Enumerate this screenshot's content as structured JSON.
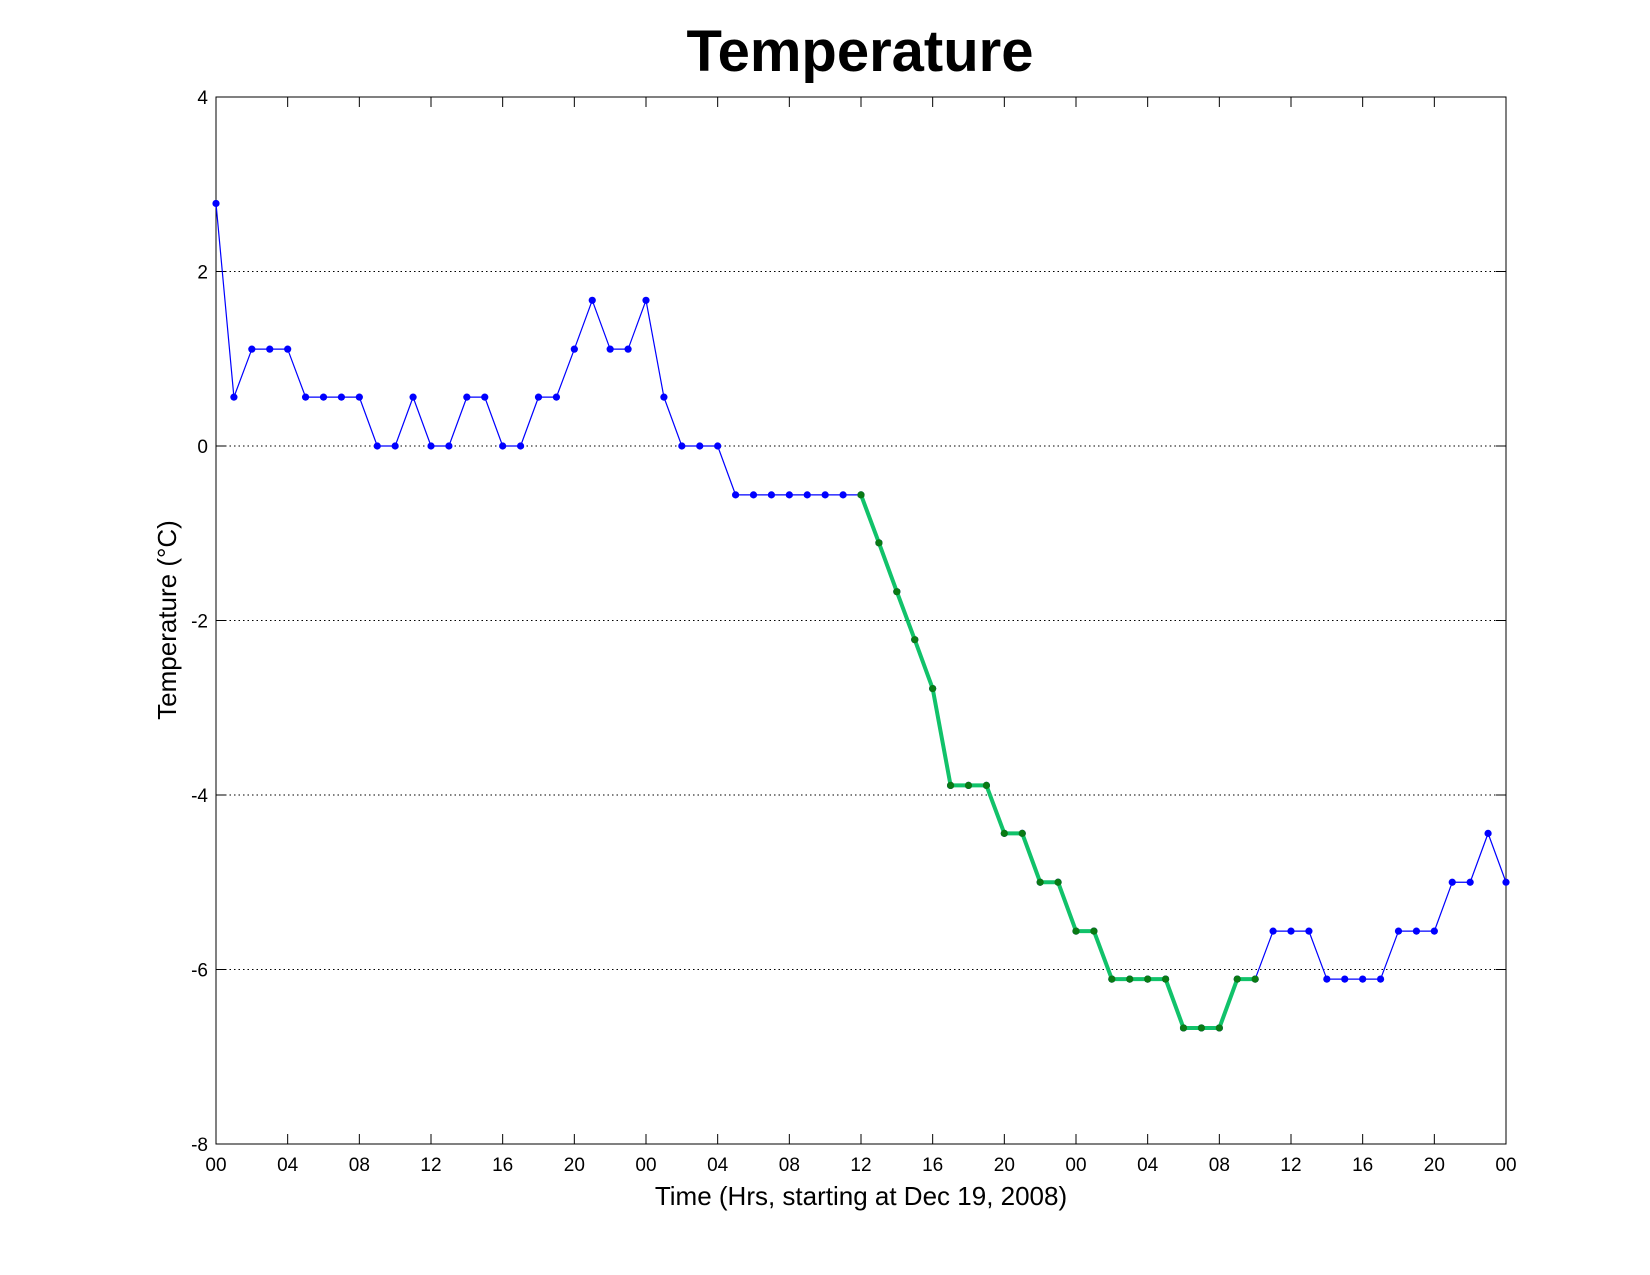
{
  "chart_data": {
    "type": "line",
    "title": "Temperature",
    "xlabel": "Time (Hrs, starting at Dec 19, 2008)",
    "ylabel": "Temperature (°C)",
    "xlim": [
      0,
      72
    ],
    "ylim": [
      -8,
      4
    ],
    "x_ticks": [
      0,
      4,
      8,
      12,
      16,
      20,
      24,
      28,
      32,
      36,
      40,
      44,
      48,
      52,
      56,
      60,
      64,
      68,
      72
    ],
    "x_tick_labels": [
      "00",
      "04",
      "08",
      "12",
      "16",
      "20",
      "00",
      "04",
      "08",
      "12",
      "16",
      "20",
      "00",
      "04",
      "08",
      "12",
      "16",
      "20",
      "00"
    ],
    "y_ticks": [
      -8,
      -6,
      -4,
      -2,
      0,
      2,
      4
    ],
    "y_tick_labels": [
      "-8",
      "-6",
      "-4",
      "-2",
      "0",
      "2",
      "4"
    ],
    "grid": "horizontal dotted",
    "colors": {
      "base_line": "#0000ff",
      "base_marker": "#0000ff",
      "highlight_line": "#11c26a",
      "highlight_marker": "#0a7a14"
    },
    "series": [
      {
        "role": "base",
        "x": [
          0,
          1,
          2,
          3,
          4,
          5,
          6,
          7,
          8,
          9,
          10,
          11,
          12,
          13,
          14,
          15,
          16,
          17,
          18,
          19,
          20,
          21,
          22,
          23,
          24,
          25,
          26,
          27,
          28,
          29,
          30,
          31,
          32,
          33,
          34,
          35,
          36,
          37,
          38,
          39,
          40,
          41,
          42,
          43,
          44,
          45,
          46,
          47,
          48,
          49,
          50,
          51,
          52,
          53,
          54,
          55,
          56,
          57,
          58,
          59,
          60,
          61,
          62,
          63,
          64,
          65,
          66,
          67,
          68,
          69,
          70,
          71,
          72
        ],
        "values": [
          2.78,
          0.56,
          1.11,
          1.11,
          1.11,
          0.56,
          0.56,
          0.56,
          0.56,
          0,
          0,
          0.56,
          0,
          0,
          0.56,
          0.56,
          0,
          0,
          0.56,
          0.56,
          1.11,
          1.67,
          1.11,
          1.11,
          1.67,
          0.56,
          0,
          0,
          0,
          -0.56,
          -0.56,
          -0.56,
          -0.56,
          -0.56,
          -0.56,
          -0.56,
          -0.56,
          -1.11,
          -1.67,
          -2.22,
          -2.78,
          -3.89,
          -3.89,
          -3.89,
          -4.44,
          -4.44,
          -5,
          -5,
          -5.56,
          -5.56,
          -6.11,
          -6.11,
          -6.11,
          -6.11,
          -6.67,
          -6.67,
          -6.67,
          -6.11,
          -6.11,
          -5.56,
          -5.56,
          -5.56,
          -6.11,
          -6.11,
          -6.11,
          -6.11,
          -5.56,
          -5.56,
          -5.56,
          -5,
          -5,
          -4.44,
          -5
        ]
      },
      {
        "role": "highlight",
        "x": [
          36,
          37,
          38,
          39,
          40,
          41,
          42,
          43,
          44,
          45,
          46,
          47,
          48,
          49,
          50,
          51,
          52,
          53,
          54,
          55,
          56,
          57,
          58
        ],
        "values": [
          -0.56,
          -1.11,
          -1.67,
          -2.22,
          -2.78,
          -3.89,
          -3.89,
          -3.89,
          -4.44,
          -4.44,
          -5,
          -5,
          -5.56,
          -5.56,
          -6.11,
          -6.11,
          -6.11,
          -6.11,
          -6.67,
          -6.67,
          -6.67,
          -6.11,
          -6.11
        ]
      }
    ]
  }
}
